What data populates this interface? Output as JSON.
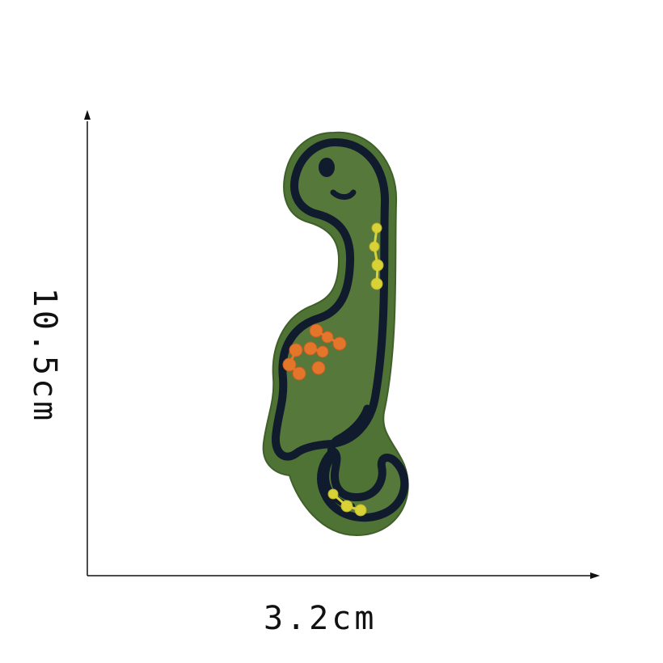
{
  "image": {
    "subject": "dinosaur-patch",
    "dimensions": {
      "height_label": "10.5cm",
      "width_label": "3.2cm"
    },
    "colors": {
      "background": "#ffffff",
      "axis": "#111111",
      "felt": "#4f7334",
      "body": "#56783a",
      "outline": "#101b2e",
      "orange_spots": "#e4762b",
      "yellow_spots": "#d9d236"
    }
  }
}
